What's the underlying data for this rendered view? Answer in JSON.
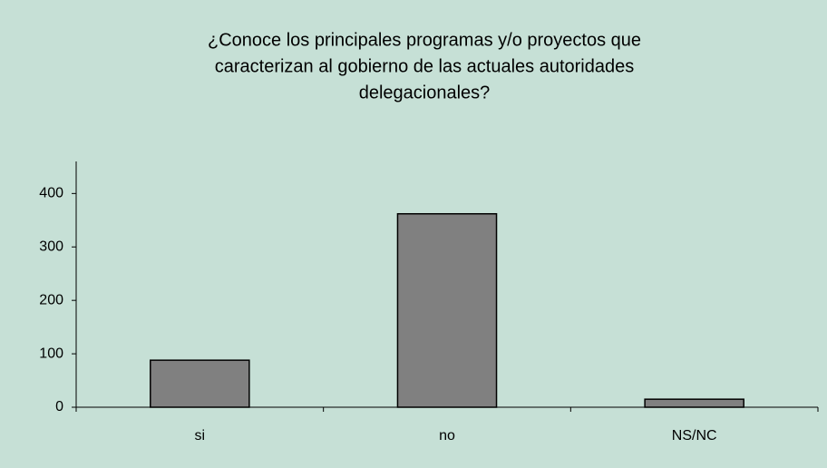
{
  "chart_data": {
    "type": "bar",
    "title": [
      "¿Conoce los principales programas y/o proyectos que",
      "caracterizan al gobierno de las actuales autoridades",
      "delegacionales?"
    ],
    "categories": [
      "si",
      "no",
      "NS/NC"
    ],
    "values": [
      88,
      362,
      15
    ],
    "color": "#808080",
    "ylim": [
      0,
      460
    ],
    "yticks": [
      0,
      100,
      200,
      300,
      400
    ],
    "grid": false
  }
}
